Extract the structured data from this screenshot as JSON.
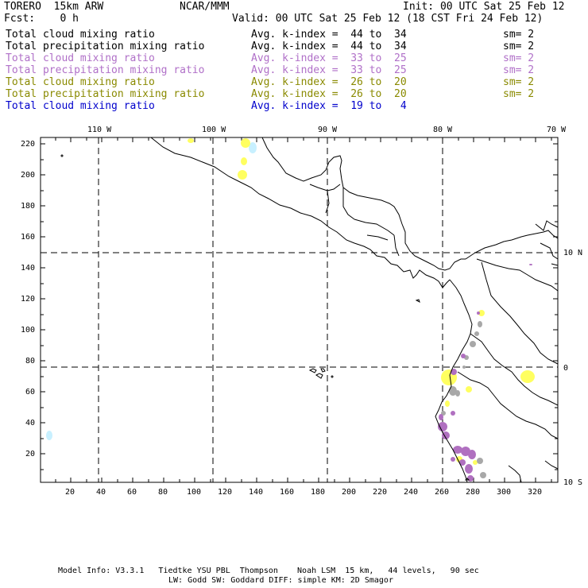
{
  "header": {
    "model": "TORERO  15km ARW",
    "center": "NCAR/MMM",
    "init": "Init: 00 UTC Sat 25 Feb 12",
    "fcst": "Fcst:    0 h",
    "valid": "Valid: 00 UTC Sat 25 Feb 12 (18 CST Fri 24 Feb 12)"
  },
  "legend": [
    {
      "field": "Total cloud mixing ratio",
      "k": "Avg. k-index =  44 to  34",
      "sm": "sm= 2",
      "color": "#000000"
    },
    {
      "field": "Total precipitation mixing ratio",
      "k": "Avg. k-index =  44 to  34",
      "sm": "sm= 2",
      "color": "#000000"
    },
    {
      "field": "Total cloud mixing ratio",
      "k": "Avg. k-index =  33 to  25",
      "sm": "sm= 2",
      "color": "#b070c8"
    },
    {
      "field": "Total precipitation mixing ratio",
      "k": "Avg. k-index =  33 to  25",
      "sm": "sm= 2",
      "color": "#b070c8"
    },
    {
      "field": "Total cloud mixing ratio",
      "k": "Avg. k-index =  26 to  20",
      "sm": "sm= 2",
      "color": "#8a8a00"
    },
    {
      "field": "Total precipitation mixing ratio",
      "k": "Avg. k-index =  26 to  20",
      "sm": "sm= 2",
      "color": "#8a8a00"
    },
    {
      "field": "Total cloud mixing ratio",
      "k": "Avg. k-index =  19 to   4",
      "sm": "",
      "color": "#0000cc"
    }
  ],
  "map": {
    "lon_labels": [
      "110 W",
      "100 W",
      "90 W",
      "80 W",
      "70 W"
    ],
    "lat_labels": [
      "10 N",
      "0",
      "10 S"
    ],
    "x_ticks": [
      "20",
      "40",
      "60",
      "80",
      "100",
      "120",
      "140",
      "160",
      "180",
      "200",
      "220",
      "240",
      "260",
      "280",
      "300",
      "320"
    ],
    "y_ticks": [
      "220",
      "200",
      "180",
      "160",
      "140",
      "120",
      "100",
      "80",
      "60",
      "40",
      "20"
    ],
    "colors": {
      "grey": "#a8a8a8",
      "purple": "#b070c0",
      "yellow": "#ffff60",
      "cyan": "#c8f0ff"
    }
  },
  "footer": {
    "line1": "Model Info: V3.3.1   Tiedtke YSU PBL  Thompson    Noah LSM  15 km,   44 levels,   90 sec",
    "line2": "LW: Godd SW: Goddard DIFF: simple KM: 2D Smagor"
  }
}
